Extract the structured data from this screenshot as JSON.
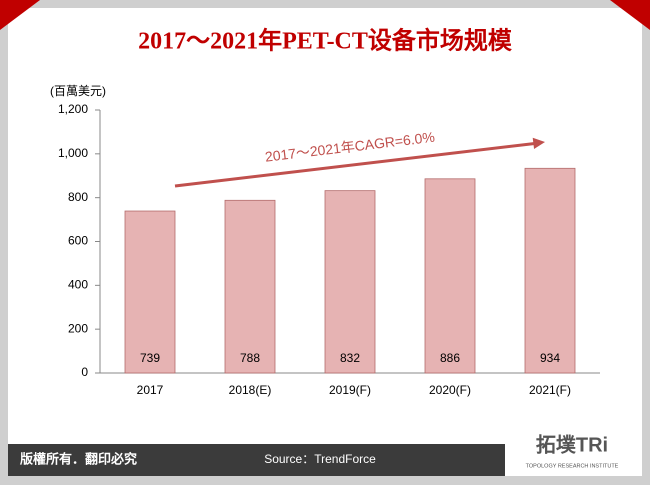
{
  "chart_data": {
    "type": "bar",
    "title": "2017～2021年PET-CT设备市场规模",
    "y_label": "(百萬美元)",
    "categories": [
      "2017",
      "2018(E)",
      "2019(F)",
      "2020(F)",
      "2021(F)"
    ],
    "values": [
      739,
      788,
      832,
      886,
      934
    ],
    "color": "#e6b3b3",
    "edge_color": "#b36b6b",
    "ylim": [
      0,
      1200
    ],
    "yticks": [
      0,
      200,
      400,
      600,
      800,
      {
        "value": 1000,
        "label": "1,000"
      },
      {
        "value": 1200,
        "label": "1,200"
      }
    ],
    "annotation": "2017～2021年CAGR=6.0%"
  },
  "footer": {
    "copyright": "版權所有．翻印必究",
    "source": "Source：TrendForce",
    "logo": "拓墣TRi",
    "logo_sub": "TOPOLOGY RESEARCH INSTITUTE"
  }
}
